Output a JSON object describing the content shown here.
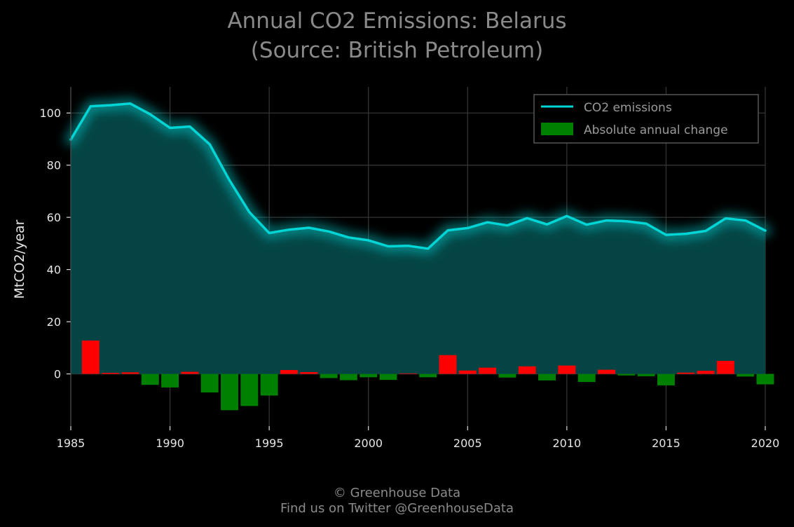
{
  "title_line1": "Annual CO2 Emissions: Belarus",
  "title_line2": "(Source: British Petroleum)",
  "credit_line1": "© Greenhouse Data",
  "credit_line2": "Find us on Twitter @GreenhouseData",
  "colors": {
    "line": "#00d5d5",
    "area": "#044444",
    "increase": "#ff0000",
    "decrease": "#008000",
    "grid": "#333333"
  },
  "chart_data": {
    "type": "line",
    "title": "Annual CO2 Emissions: Belarus",
    "subtitle": "(Source: British Petroleum)",
    "xlabel": "",
    "ylabel": "MtCO2/year",
    "xlim": [
      1985,
      2020
    ],
    "ylim": [
      -20,
      110
    ],
    "xticks": [
      1985,
      1990,
      1995,
      2000,
      2005,
      2010,
      2015,
      2020
    ],
    "yticks": [
      0,
      20,
      40,
      60,
      80,
      100
    ],
    "grid": true,
    "legend_position": "top-right",
    "x": [
      1985,
      1986,
      1987,
      1988,
      1989,
      1990,
      1991,
      1992,
      1993,
      1994,
      1995,
      1996,
      1997,
      1998,
      1999,
      2000,
      2001,
      2002,
      2003,
      2004,
      2005,
      2006,
      2007,
      2008,
      2009,
      2010,
      2011,
      2012,
      2013,
      2014,
      2015,
      2016,
      2017,
      2018,
      2019,
      2020
    ],
    "series": [
      {
        "name": "CO2 emissions",
        "type": "line",
        "values": [
          89.8,
          102.6,
          103.0,
          103.6,
          99.5,
          94.3,
          94.8,
          88.0,
          74.2,
          62.0,
          54.0,
          55.3,
          56.0,
          54.6,
          52.3,
          51.2,
          48.9,
          49.1,
          48.0,
          55.0,
          55.9,
          58.1,
          56.9,
          59.7,
          57.3,
          60.5,
          57.2,
          58.8,
          58.5,
          57.6,
          53.3,
          53.7,
          54.8,
          59.6,
          58.8,
          54.9
        ]
      },
      {
        "name": "Absolute annual change",
        "type": "bar",
        "values": [
          0,
          12.8,
          0.4,
          0.6,
          -4.2,
          -5.2,
          0.8,
          -7.1,
          -13.9,
          -12.3,
          -8.3,
          1.5,
          0.7,
          -1.6,
          -2.4,
          -1.3,
          -2.3,
          0.2,
          -1.3,
          7.2,
          1.3,
          2.4,
          -1.4,
          2.9,
          -2.5,
          3.2,
          -3.1,
          1.6,
          -0.6,
          -0.9,
          -4.4,
          0.5,
          1.2,
          5.0,
          -1.0,
          -4.0
        ]
      }
    ]
  }
}
